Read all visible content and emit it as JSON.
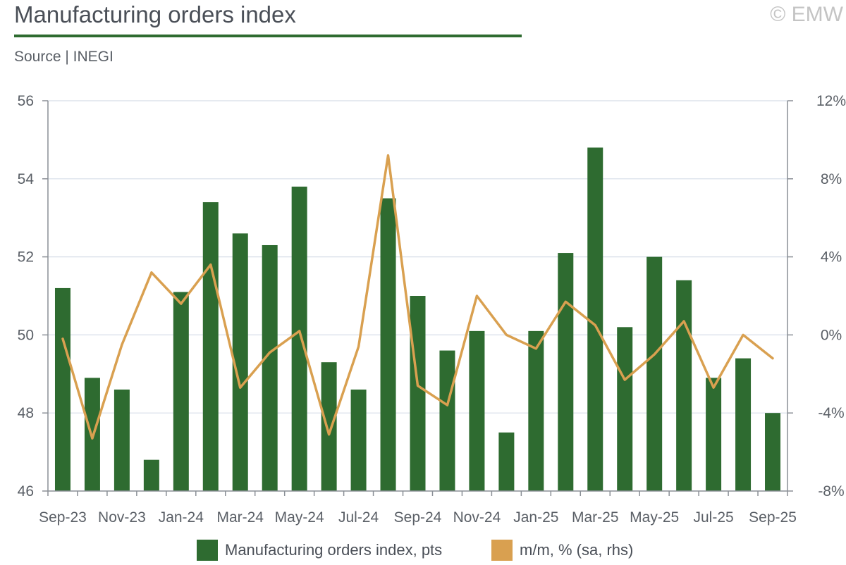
{
  "header": {
    "title": "Manufacturing orders index",
    "copyright": "© EMW",
    "source": "Source | INEGI"
  },
  "colors": {
    "bar": "#2e6b30",
    "line": "#d9a050",
    "grid": "#d6dde8",
    "axis": "#8a8f96"
  },
  "legend": {
    "bar_label": "Manufacturing orders index, pts",
    "line_label": "m/m, % (sa, rhs)"
  },
  "chart_data": {
    "type": "bar",
    "title": "Manufacturing orders index",
    "categories": [
      "Sep-23",
      "Oct-23",
      "Nov-23",
      "Dec-23",
      "Jan-24",
      "Feb-24",
      "Mar-24",
      "Apr-24",
      "May-24",
      "Jun-24",
      "Jul-24",
      "Aug-24",
      "Sep-24",
      "Oct-24",
      "Nov-24",
      "Dec-24",
      "Jan-25",
      "Feb-25",
      "Mar-25",
      "Apr-25",
      "May-25",
      "Jun-25",
      "Jul-25",
      "Aug-25",
      "Sep-25"
    ],
    "x_tick_labels": [
      "Sep-23",
      "Nov-23",
      "Jan-24",
      "Mar-24",
      "May-24",
      "Jul-24",
      "Sep-24",
      "Nov-24",
      "Jan-25",
      "Mar-25",
      "May-25",
      "Jul-25",
      "Sep-25"
    ],
    "series": [
      {
        "name": "Manufacturing orders index, pts",
        "type": "bar",
        "axis": "left",
        "values": [
          51.2,
          48.9,
          48.6,
          46.8,
          51.1,
          53.4,
          52.6,
          52.3,
          53.8,
          49.3,
          48.6,
          53.5,
          51.0,
          49.6,
          50.1,
          47.5,
          50.1,
          52.1,
          54.8,
          50.2,
          52.0,
          51.4,
          48.9,
          49.4,
          48.0
        ]
      },
      {
        "name": "m/m, % (sa, rhs)",
        "type": "line",
        "axis": "right",
        "values": [
          -0.2,
          -5.3,
          -0.5,
          3.2,
          1.6,
          3.6,
          -2.7,
          -0.9,
          0.2,
          -5.1,
          -0.6,
          9.2,
          -2.6,
          -3.6,
          2.0,
          0.0,
          -0.7,
          1.7,
          0.5,
          -2.3,
          -1.0,
          0.7,
          -2.7,
          0.0,
          -1.2
        ]
      }
    ],
    "y_left": {
      "min": 46,
      "max": 56,
      "ticks": [
        46,
        48,
        50,
        52,
        54,
        56
      ],
      "tick_labels": [
        "46",
        "48",
        "50",
        "52",
        "54",
        "56"
      ]
    },
    "y_right": {
      "min": -8,
      "max": 12,
      "ticks": [
        -8,
        -4,
        0,
        4,
        8,
        12
      ],
      "tick_labels": [
        "-8%",
        "-4%",
        "0%",
        "4%",
        "8%",
        "12%"
      ]
    },
    "grid": true,
    "legend_position": "bottom"
  }
}
